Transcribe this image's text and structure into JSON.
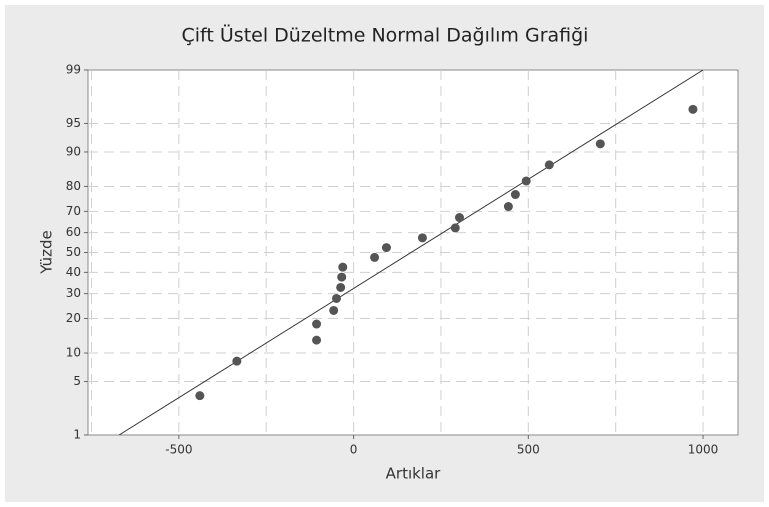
{
  "chart_data": {
    "type": "scatter",
    "title": "Çift Üstel Düzeltme Normal Dağılım Grafiği",
    "xlabel": "Artıklar",
    "ylabel": "Yüzde",
    "yscale": "probability",
    "xlim": [
      -760,
      1100
    ],
    "ylim": [
      1,
      99
    ],
    "xticks": [
      -500,
      0,
      500,
      1000
    ],
    "xminor": [
      -750,
      -250,
      250,
      750
    ],
    "yticks": [
      1,
      5,
      10,
      20,
      30,
      40,
      50,
      60,
      70,
      80,
      90,
      95,
      99
    ],
    "grid": true,
    "color": "#555555",
    "line_color": "#333333",
    "fit_line": {
      "x": [
        -671,
        1000
      ],
      "y": [
        1,
        99
      ]
    },
    "series": [
      {
        "name": "Artıklar",
        "x": [
          -440,
          -334,
          -106,
          -106,
          -57,
          -49,
          -37,
          -34,
          -31,
          60,
          94,
          197,
          291,
          303,
          443,
          463,
          494,
          560,
          706,
          971
        ],
        "values": [
          3.4,
          8.3,
          13.2,
          18.1,
          23.0,
          27.9,
          32.8,
          37.7,
          42.6,
          47.5,
          52.5,
          57.4,
          62.3,
          67.2,
          72.1,
          77.0,
          81.9,
          86.8,
          91.7,
          96.6
        ]
      }
    ]
  }
}
